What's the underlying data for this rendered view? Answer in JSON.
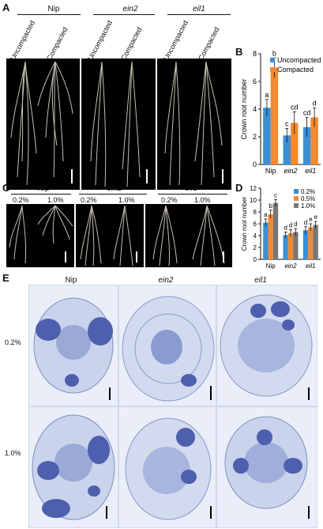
{
  "panels": {
    "A": {
      "label": "A",
      "genotypes": [
        "Nip",
        "ein2",
        "eil1"
      ],
      "conditions": [
        "Uncompacted",
        "Compacted"
      ]
    },
    "B": {
      "label": "B"
    },
    "C": {
      "label": "C",
      "genotypes": [
        "Nip",
        "ein2",
        "eil1"
      ],
      "concentrations": [
        "0.2%",
        "1.0%"
      ]
    },
    "D": {
      "label": "D"
    },
    "E": {
      "label": "E",
      "genotypes": [
        "Nip",
        "ein2",
        "eil1"
      ],
      "rows": [
        "0.2%",
        "1.0%"
      ]
    }
  },
  "chart_data": [
    {
      "type": "bar",
      "panel": "B",
      "categories": [
        "Nip",
        "ein2",
        "eil1"
      ],
      "series": [
        {
          "name": "Uncompacted",
          "color": "#3b8fd6",
          "values": [
            4.1,
            2.1,
            2.7
          ],
          "errors": [
            0.6,
            0.5,
            0.7
          ],
          "letters": [
            "a",
            "c",
            "cd"
          ]
        },
        {
          "name": "Compacted",
          "color": "#f28a30",
          "values": [
            7.0,
            3.0,
            3.4
          ],
          "errors": [
            0.7,
            0.8,
            0.7
          ],
          "letters": [
            "b",
            "cd",
            "d"
          ]
        }
      ],
      "ylabel": "Crown root number",
      "ylim": [
        0,
        8
      ],
      "yticks": [
        0,
        2,
        4,
        6,
        8
      ],
      "legend": "top-right"
    },
    {
      "type": "bar",
      "panel": "D",
      "categories": [
        "Nip",
        "ein2",
        "eil1"
      ],
      "series": [
        {
          "name": "0.2%",
          "color": "#3b8fd6",
          "values": [
            6.2,
            4.1,
            4.9
          ],
          "errors": [
            0.6,
            0.5,
            0.6
          ],
          "letters": [
            "a",
            "d",
            "d"
          ]
        },
        {
          "name": "0.5%",
          "color": "#f28a30",
          "values": [
            7.6,
            4.4,
            5.4
          ],
          "errors": [
            0.7,
            0.6,
            0.6
          ],
          "letters": [
            "b",
            "d",
            "e"
          ]
        },
        {
          "name": "1.0%",
          "color": "#777777",
          "values": [
            9.5,
            4.6,
            5.8
          ],
          "errors": [
            0.6,
            0.6,
            0.6
          ],
          "letters": [
            "c",
            "d",
            "e"
          ]
        }
      ],
      "ylabel": "Crown root number",
      "ylim": [
        0,
        12
      ],
      "yticks": [
        0,
        2,
        4,
        6,
        8,
        10,
        12
      ],
      "legend": "top-right"
    }
  ]
}
